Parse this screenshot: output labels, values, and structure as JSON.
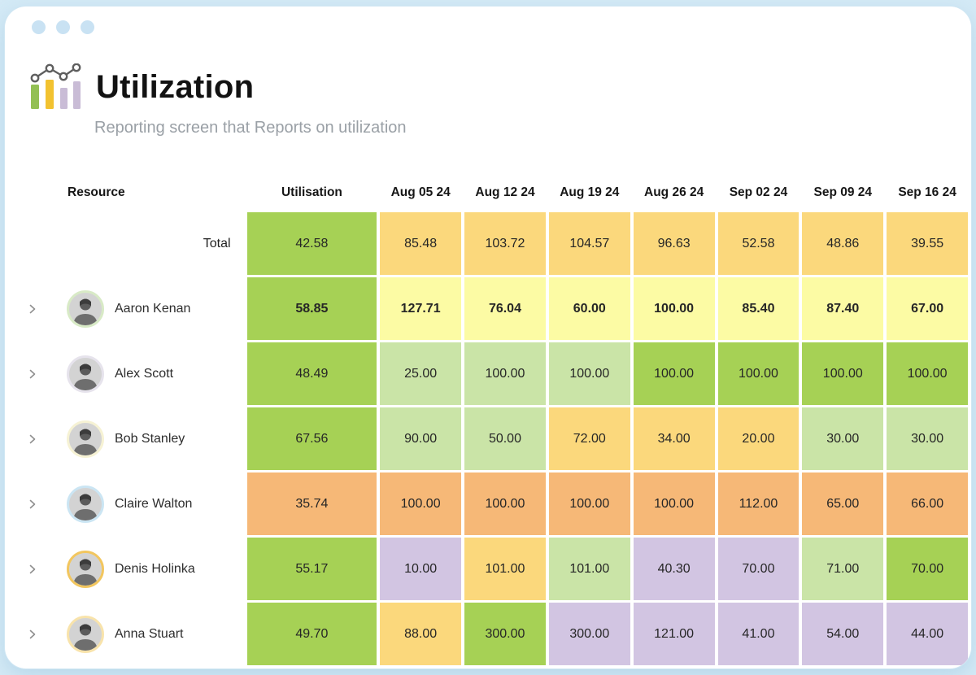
{
  "header": {
    "title": "Utilization",
    "subtitle": "Reporting screen that Reports on utilization"
  },
  "palette": {
    "green": "#a6d155",
    "lightgreen": "#cae4a7",
    "yellow": "#fbd87c",
    "lightyellow": "#fcfba4",
    "orange": "#f6b877",
    "purple": "#d2c5e2"
  },
  "icon": {
    "bar_colors": [
      "#93c054",
      "#f2c230",
      "#c9bcd6",
      "#c9bcd6"
    ],
    "line_color": "#5f5f5f"
  },
  "window": {
    "dot_color": "#c9e2f3"
  },
  "table": {
    "resource_header": "Resource",
    "utilisation_column": "Utilisation",
    "week_columns": [
      "Aug 05 24",
      "Aug 12 24",
      "Aug 19 24",
      "Aug 26 24",
      "Sep 02 24",
      "Sep 09 24",
      "Sep 16 24"
    ],
    "rows": [
      {
        "label": "Total",
        "type": "total",
        "bold": false,
        "ring": null,
        "utilisation": {
          "value": "42.58",
          "color": "green"
        },
        "weeks": [
          {
            "value": "85.48",
            "color": "yellow"
          },
          {
            "value": "103.72",
            "color": "yellow"
          },
          {
            "value": "104.57",
            "color": "yellow"
          },
          {
            "value": "96.63",
            "color": "yellow"
          },
          {
            "value": "52.58",
            "color": "yellow"
          },
          {
            "value": "48.86",
            "color": "yellow"
          },
          {
            "value": "39.55",
            "color": "yellow"
          }
        ]
      },
      {
        "label": "Aaron Kenan",
        "type": "person",
        "bold": true,
        "ring": "#d8eac6",
        "utilisation": {
          "value": "58.85",
          "color": "green"
        },
        "weeks": [
          {
            "value": "127.71",
            "color": "lightyellow"
          },
          {
            "value": "76.04",
            "color": "lightyellow"
          },
          {
            "value": "60.00",
            "color": "lightyellow"
          },
          {
            "value": "100.00",
            "color": "lightyellow"
          },
          {
            "value": "85.40",
            "color": "lightyellow"
          },
          {
            "value": "87.40",
            "color": "lightyellow"
          },
          {
            "value": "67.00",
            "color": "lightyellow"
          }
        ]
      },
      {
        "label": "Alex Scott",
        "type": "person",
        "bold": false,
        "ring": "#e6e3ec",
        "utilisation": {
          "value": "48.49",
          "color": "green"
        },
        "weeks": [
          {
            "value": "25.00",
            "color": "lightgreen"
          },
          {
            "value": "100.00",
            "color": "lightgreen"
          },
          {
            "value": "100.00",
            "color": "lightgreen"
          },
          {
            "value": "100.00",
            "color": "green"
          },
          {
            "value": "100.00",
            "color": "green"
          },
          {
            "value": "100.00",
            "color": "green"
          },
          {
            "value": "100.00",
            "color": "green"
          }
        ]
      },
      {
        "label": "Bob Stanley",
        "type": "person",
        "bold": false,
        "ring": "#f6f2d4",
        "utilisation": {
          "value": "67.56",
          "color": "green"
        },
        "weeks": [
          {
            "value": "90.00",
            "color": "lightgreen"
          },
          {
            "value": "50.00",
            "color": "lightgreen"
          },
          {
            "value": "72.00",
            "color": "yellow"
          },
          {
            "value": "34.00",
            "color": "yellow"
          },
          {
            "value": "20.00",
            "color": "yellow"
          },
          {
            "value": "30.00",
            "color": "lightgreen"
          },
          {
            "value": "30.00",
            "color": "lightgreen"
          }
        ]
      },
      {
        "label": "Claire Walton",
        "type": "person",
        "bold": false,
        "ring": "#cbe5f3",
        "utilisation": {
          "value": "35.74",
          "color": "orange"
        },
        "weeks": [
          {
            "value": "100.00",
            "color": "orange"
          },
          {
            "value": "100.00",
            "color": "orange"
          },
          {
            "value": "100.00",
            "color": "orange"
          },
          {
            "value": "100.00",
            "color": "orange"
          },
          {
            "value": "112.00",
            "color": "orange"
          },
          {
            "value": "65.00",
            "color": "orange"
          },
          {
            "value": "66.00",
            "color": "orange"
          }
        ]
      },
      {
        "label": "Denis Holinka",
        "type": "person",
        "bold": false,
        "ring": "#f2c65f",
        "utilisation": {
          "value": "55.17",
          "color": "green"
        },
        "weeks": [
          {
            "value": "10.00",
            "color": "purple"
          },
          {
            "value": "101.00",
            "color": "yellow"
          },
          {
            "value": "101.00",
            "color": "lightgreen"
          },
          {
            "value": "40.30",
            "color": "purple"
          },
          {
            "value": "70.00",
            "color": "purple"
          },
          {
            "value": "71.00",
            "color": "lightgreen"
          },
          {
            "value": "70.00",
            "color": "green"
          }
        ]
      },
      {
        "label": "Anna Stuart",
        "type": "person",
        "bold": false,
        "ring": "#f8e3ab",
        "utilisation": {
          "value": "49.70",
          "color": "green"
        },
        "weeks": [
          {
            "value": "88.00",
            "color": "yellow"
          },
          {
            "value": "300.00",
            "color": "green"
          },
          {
            "value": "300.00",
            "color": "purple"
          },
          {
            "value": "121.00",
            "color": "purple"
          },
          {
            "value": "41.00",
            "color": "purple"
          },
          {
            "value": "54.00",
            "color": "purple"
          },
          {
            "value": "44.00",
            "color": "purple"
          }
        ]
      }
    ]
  }
}
